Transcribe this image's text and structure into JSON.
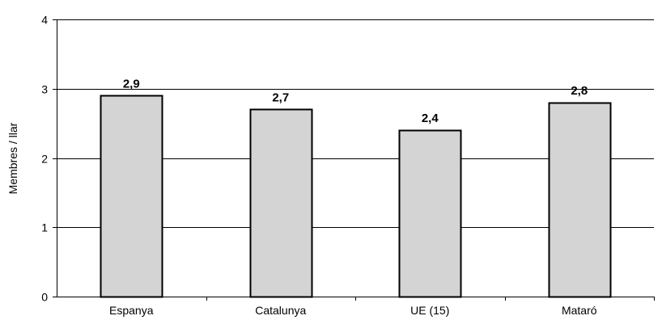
{
  "chart_data": {
    "type": "bar",
    "categories": [
      "Espanya",
      "Catalunya",
      "UE (15)",
      "Mataró"
    ],
    "values": [
      2.9,
      2.7,
      2.4,
      2.8
    ],
    "data_labels": [
      "2,9",
      "2,7",
      "2,4",
      "2,8"
    ],
    "title": "",
    "xlabel": "",
    "ylabel": "Membres / llar",
    "ylim": [
      0,
      4
    ],
    "yticks": [
      0,
      1,
      2,
      3,
      4
    ],
    "ytick_labels": [
      "0",
      "1",
      "2",
      "3",
      "4"
    ],
    "grid": true,
    "legend": "none",
    "colors": {
      "bar_fill": "#d4d4d4",
      "bar_stroke": "#000000",
      "grid": "#000000",
      "axis": "#000000"
    }
  }
}
